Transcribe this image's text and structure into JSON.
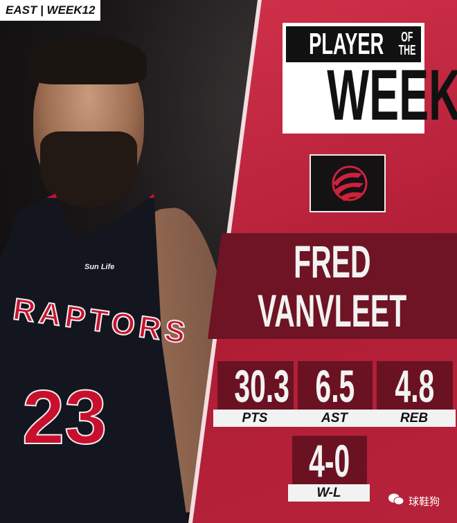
{
  "badge": "EAST | WEEK12",
  "jersey": {
    "team": "RAPTORS",
    "number": "23",
    "sponsor": "Sun Life"
  },
  "title": {
    "line1": "PLAYER",
    "line2a": "OF",
    "line2b": "THE",
    "line3": "WEEK"
  },
  "team_logo": "raptors-basketball-logo",
  "player": {
    "first": "FRED",
    "last": "VANVLEET"
  },
  "stats": [
    {
      "value": "30.3",
      "label": "PTS"
    },
    {
      "value": "6.5",
      "label": "AST"
    },
    {
      "value": "4.8",
      "label": "REB"
    },
    {
      "value": "4-0",
      "label": "W-L"
    }
  ],
  "watermark": "球鞋狗",
  "colors": {
    "red": "#c8102e",
    "dark": "#6e1424"
  }
}
